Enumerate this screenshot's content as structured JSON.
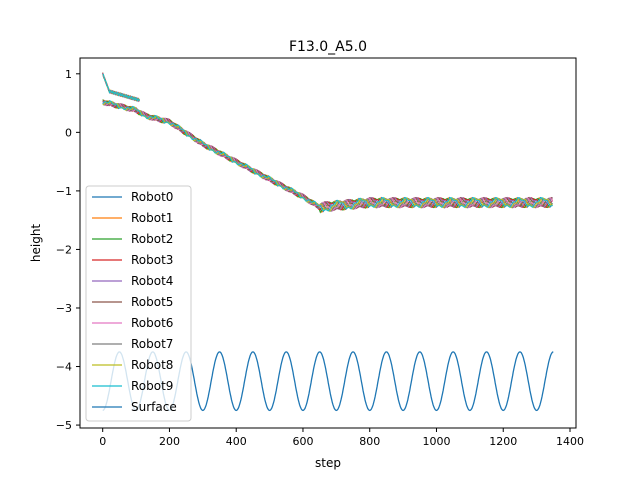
{
  "chart_data": {
    "type": "line",
    "title": "F13.0_A5.0",
    "xlabel": "step",
    "ylabel": "height",
    "xlim": [
      -68,
      1418
    ],
    "ylim": [
      -5.05,
      1.27
    ],
    "xticks": [
      0,
      200,
      400,
      600,
      800,
      1000,
      1200,
      1400
    ],
    "xtick_labels": [
      "0",
      "200",
      "400",
      "600",
      "800",
      "1000",
      "1200",
      "1400"
    ],
    "yticks": [
      -5,
      -4,
      -3,
      -2,
      -1,
      0,
      1
    ],
    "ytick_labels": [
      "−5",
      "−4",
      "−3",
      "−2",
      "−1",
      "0",
      "1"
    ],
    "grid": false,
    "legend_position": "lower-left",
    "robot_trend": {
      "x": [
        0,
        100,
        130,
        200,
        300,
        400,
        500,
        600,
        650,
        700,
        800,
        1000,
        1200,
        1350
      ],
      "y": [
        0.52,
        0.38,
        0.28,
        0.18,
        -0.2,
        -0.5,
        -0.8,
        -1.1,
        -1.28,
        -1.25,
        -1.2,
        -1.2,
        -1.2,
        -1.2
      ],
      "start_branch": {
        "x": [
          0,
          10,
          20,
          110
        ],
        "y": [
          1.0,
          0.85,
          0.7,
          0.55
        ]
      },
      "oscillation_amplitude_late": 0.07,
      "oscillation_period_steps": 68
    },
    "series": [
      {
        "name": "Robot0",
        "color": "#1f77b4",
        "phase": 0.0
      },
      {
        "name": "Robot1",
        "color": "#ff7f0e",
        "phase": 0.6
      },
      {
        "name": "Robot2",
        "color": "#2ca02c",
        "phase": 1.2
      },
      {
        "name": "Robot3",
        "color": "#d62728",
        "phase": 1.9
      },
      {
        "name": "Robot4",
        "color": "#9467bd",
        "phase": 2.5
      },
      {
        "name": "Robot5",
        "color": "#8c564b",
        "phase": 3.1
      },
      {
        "name": "Robot6",
        "color": "#e377c2",
        "phase": 3.8
      },
      {
        "name": "Robot7",
        "color": "#7f7f7f",
        "phase": 4.4
      },
      {
        "name": "Robot8",
        "color": "#bcbd22",
        "phase": 5.0
      },
      {
        "name": "Robot9",
        "color": "#17becf",
        "phase": 5.6
      }
    ],
    "surface": {
      "name": "Surface",
      "color": "#1f77b4",
      "x_start": 0,
      "x_end": 1350,
      "center": -4.25,
      "amplitude": 0.5,
      "period_steps": 100
    }
  }
}
